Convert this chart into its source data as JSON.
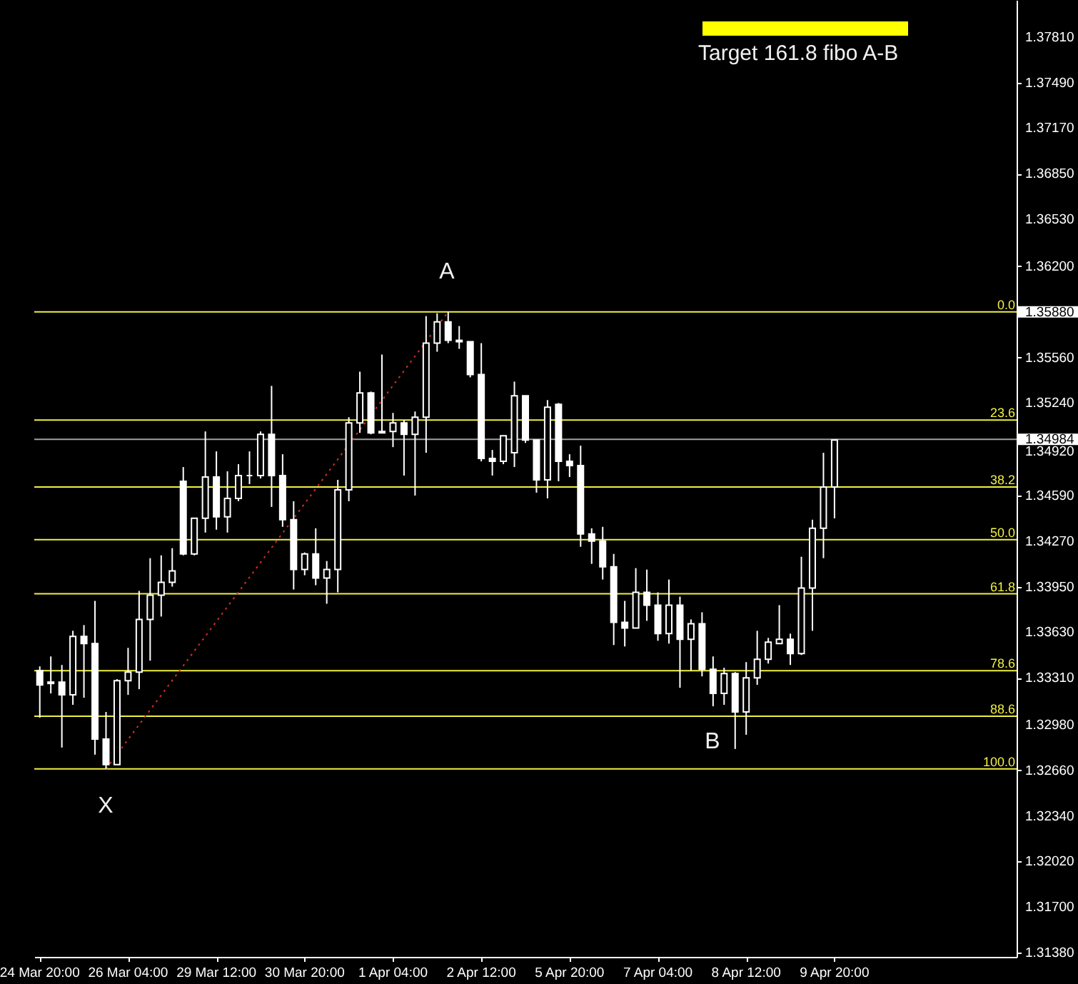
{
  "chart_data": {
    "type": "candlestick",
    "color": "#ffffff",
    "categories": [
      "24 Mar 20:00",
      null,
      null,
      null,
      null,
      null,
      null,
      null,
      "26 Mar 04:00",
      null,
      null,
      null,
      null,
      null,
      null,
      null,
      "29 Mar 12:00",
      null,
      null,
      null,
      null,
      null,
      null,
      null,
      "30 Mar 20:00",
      null,
      null,
      null,
      null,
      null,
      null,
      null,
      "1 Apr 04:00",
      null,
      null,
      null,
      null,
      null,
      null,
      null,
      "2 Apr 12:00",
      null,
      null,
      null,
      null,
      null,
      null,
      null,
      "5 Apr 20:00",
      null,
      null,
      null,
      null,
      null,
      null,
      null,
      "7 Apr 04:00",
      null,
      null,
      null,
      null,
      null,
      null,
      null,
      "8 Apr 12:00",
      null,
      null,
      null,
      null,
      null,
      null,
      null,
      "9 Apr 20:00",
      null,
      null,
      null,
      null,
      null,
      null,
      null,
      null,
      null,
      null,
      null,
      null,
      null,
      null,
      null,
      null
    ],
    "ohlc": [
      [
        1.3336,
        1.3339,
        1.3303,
        1.3326
      ],
      [
        1.3327,
        1.3346,
        1.332,
        1.3328
      ],
      [
        1.3328,
        1.334,
        1.3282,
        1.3319
      ],
      [
        1.3319,
        1.3364,
        1.3312,
        1.336
      ],
      [
        1.336,
        1.3368,
        1.3317,
        1.3355
      ],
      [
        1.3355,
        1.3385,
        1.3277,
        1.3288
      ],
      [
        1.3288,
        1.3307,
        1.3267,
        1.327
      ],
      [
        1.327,
        1.333,
        1.327,
        1.3329
      ],
      [
        1.3329,
        1.3352,
        1.3319,
        1.3335
      ],
      [
        1.3335,
        1.3392,
        1.3323,
        1.3372
      ],
      [
        1.3372,
        1.3415,
        1.3343,
        1.3389
      ],
      [
        1.3389,
        1.3417,
        1.3374,
        1.3398
      ],
      [
        1.3398,
        1.3422,
        1.3395,
        1.3406
      ],
      [
        1.3469,
        1.3479,
        1.3417,
        1.3418
      ],
      [
        1.3418,
        1.3443,
        1.3417,
        1.3443
      ],
      [
        1.3443,
        1.3504,
        1.3433,
        1.3472
      ],
      [
        1.3472,
        1.349,
        1.3435,
        1.3444
      ],
      [
        1.3444,
        1.3476,
        1.3433,
        1.3457
      ],
      [
        1.3457,
        1.3481,
        1.3455,
        1.3473
      ],
      [
        1.3473,
        1.349,
        1.3467,
        1.3473
      ],
      [
        1.3473,
        1.3504,
        1.3471,
        1.3502
      ],
      [
        1.3502,
        1.3536,
        1.3451,
        1.3473
      ],
      [
        1.3473,
        1.3488,
        1.3437,
        1.3442
      ],
      [
        1.3442,
        1.3455,
        1.3393,
        1.3407
      ],
      [
        1.3407,
        1.3419,
        1.3403,
        1.3418
      ],
      [
        1.3418,
        1.3436,
        1.3396,
        1.3401
      ],
      [
        1.3401,
        1.3413,
        1.3383,
        1.3407
      ],
      [
        1.3407,
        1.347,
        1.3391,
        1.3463
      ],
      [
        1.3463,
        1.3514,
        1.3455,
        1.351
      ],
      [
        1.351,
        1.3546,
        1.3503,
        1.3531
      ],
      [
        1.3531,
        1.3532,
        1.3502,
        1.3503
      ],
      [
        1.3503,
        1.3558,
        1.3503,
        1.3504
      ],
      [
        1.3504,
        1.3517,
        1.3493,
        1.351
      ],
      [
        1.351,
        1.3512,
        1.3473,
        1.3502
      ],
      [
        1.3502,
        1.3518,
        1.3459,
        1.3514
      ],
      [
        1.3514,
        1.3585,
        1.3489,
        1.3566
      ],
      [
        1.3566,
        1.3587,
        1.356,
        1.3581
      ],
      [
        1.3581,
        1.3588,
        1.3566,
        1.3568
      ],
      [
        1.3568,
        1.3578,
        1.3562,
        1.3567
      ],
      [
        1.3567,
        1.3567,
        1.3542,
        1.3544
      ],
      [
        1.3544,
        1.3566,
        1.3483,
        1.3485
      ],
      [
        1.3485,
        1.3491,
        1.3473,
        1.3483
      ],
      [
        1.3483,
        1.3501,
        1.3481,
        1.3501
      ],
      [
        1.3489,
        1.3539,
        1.3479,
        1.3529
      ],
      [
        1.3529,
        1.3529,
        1.3496,
        1.3498
      ],
      [
        1.3498,
        1.3498,
        1.3461,
        1.347
      ],
      [
        1.347,
        1.3526,
        1.3457,
        1.3521
      ],
      [
        1.3523,
        1.3524,
        1.3469,
        1.3483
      ],
      [
        1.3483,
        1.3488,
        1.3472,
        1.348
      ],
      [
        1.348,
        1.3494,
        1.3423,
        1.3432
      ],
      [
        1.3432,
        1.3436,
        1.3411,
        1.3427
      ],
      [
        1.3427,
        1.3437,
        1.34,
        1.3409
      ],
      [
        1.3409,
        1.3418,
        1.3354,
        1.337
      ],
      [
        1.337,
        1.3385,
        1.3353,
        1.3366
      ],
      [
        1.3366,
        1.3408,
        1.3366,
        1.3391
      ],
      [
        1.3391,
        1.3407,
        1.3371,
        1.3382
      ],
      [
        1.3382,
        1.3391,
        1.3357,
        1.3362
      ],
      [
        1.3362,
        1.34,
        1.3355,
        1.3382
      ],
      [
        1.3382,
        1.3388,
        1.3324,
        1.3358
      ],
      [
        1.3358,
        1.3372,
        1.3336,
        1.3369
      ],
      [
        1.3369,
        1.3377,
        1.3332,
        1.3337
      ],
      [
        1.3337,
        1.3346,
        1.3311,
        1.332
      ],
      [
        1.332,
        1.3338,
        1.3312,
        1.3334
      ],
      [
        1.3334,
        1.3335,
        1.3281,
        1.3307
      ],
      [
        1.3307,
        1.3342,
        1.3291,
        1.3331
      ],
      [
        1.3331,
        1.3364,
        1.3326,
        1.3344
      ],
      [
        1.3344,
        1.3359,
        1.3341,
        1.3356
      ],
      [
        1.3355,
        1.3382,
        1.3355,
        1.3358
      ],
      [
        1.3358,
        1.3362,
        1.334,
        1.3348
      ],
      [
        1.3348,
        1.3416,
        1.3347,
        1.3394
      ],
      [
        1.3394,
        1.3442,
        1.3364,
        1.3436
      ],
      [
        1.3436,
        1.3489,
        1.3415,
        1.3465
      ],
      [
        1.3465,
        1.3498,
        1.3443,
        1.3498
      ],
      null,
      null,
      null,
      null,
      null,
      null,
      null,
      null,
      null,
      null,
      null,
      null,
      null,
      null,
      null,
      null
    ],
    "series": [
      {
        "type": "line",
        "values": [
          null,
          null,
          null,
          null,
          null,
          null,
          1.3267,
          null,
          null,
          null,
          null,
          null,
          null,
          null,
          null,
          null,
          null,
          null,
          null,
          null,
          null,
          null,
          null,
          null,
          null,
          null,
          null,
          null,
          null,
          null,
          null,
          null,
          null,
          null,
          null,
          null,
          null,
          1.3588,
          null,
          null,
          null,
          null,
          null,
          null,
          null,
          null,
          null,
          null,
          null,
          null,
          null,
          null,
          null,
          null,
          null,
          null,
          null,
          null,
          null,
          null,
          null,
          null,
          null,
          null,
          null,
          null,
          null,
          null,
          null,
          null,
          null,
          null,
          null,
          null,
          null,
          null,
          null,
          null,
          null,
          null,
          null,
          null,
          null,
          null,
          null,
          null,
          null,
          null,
          null
        ],
        "color": "#d03020",
        "line_style": "dotted"
      }
    ],
    "ylim": [
      1.3135,
      1.3807
    ],
    "yticks": [
      {
        "value": 1.3781,
        "label": "1.37810"
      },
      {
        "value": 1.3749,
        "label": "1.37490"
      },
      {
        "value": 1.3717,
        "label": "1.37170"
      },
      {
        "value": 1.3685,
        "label": "1.36850"
      },
      {
        "value": 1.3653,
        "label": "1.36530"
      },
      {
        "value": 1.362,
        "label": "1.36200"
      },
      {
        "value": 1.3588,
        "label": "1.35880"
      },
      {
        "value": 1.3556,
        "label": "1.35560"
      },
      {
        "value": 1.3524,
        "label": "1.35240"
      },
      1.34984,
      {
        "value": 1.3492,
        "label": "1.34920"
      },
      {
        "value": 1.3459,
        "label": "1.34590"
      },
      {
        "value": 1.3427,
        "label": "1.34270"
      },
      {
        "value": 1.3395,
        "label": "1.33950"
      },
      {
        "value": 1.3363,
        "label": "1.33630"
      },
      {
        "value": 1.3331,
        "label": "1.33310"
      },
      {
        "value": 1.3298,
        "label": "1.32980"
      },
      {
        "value": 1.3266,
        "label": "1.32660"
      },
      {
        "value": 1.3234,
        "label": "1.32340"
      },
      {
        "value": 1.3202,
        "label": "1.32020"
      },
      {
        "value": 1.317,
        "label": "1.31700"
      },
      {
        "value": 1.3138,
        "label": "1.31380"
      }
    ],
    "ref_lines": [
      {
        "axis": "y",
        "value": 1.3588,
        "color": "#f0f040"
      },
      {
        "axis": "y",
        "value": 1.3512,
        "color": "#f0f040"
      },
      {
        "axis": "y",
        "value": 1.3465,
        "color": "#f0f040"
      },
      {
        "axis": "y",
        "value": 1.3428,
        "color": "#f0f040"
      },
      {
        "axis": "y",
        "value": 1.339,
        "color": "#f0f040"
      },
      {
        "axis": "y",
        "value": 1.3336,
        "color": "#f0f040"
      },
      {
        "axis": "y",
        "value": 1.3304,
        "color": "#f0f040"
      },
      {
        "axis": "y",
        "value": 1.3267,
        "color": "#f0f040"
      },
      {
        "axis": "y",
        "value": 1.34984,
        "color": "#a0a0a0"
      }
    ],
    "annotations": [
      "Target 161.8 fibo A-B",
      "A",
      "B",
      "X",
      {
        "text": "0.0",
        "y": 1.3588
      },
      {
        "text": "23.6",
        "y": 1.3512
      },
      {
        "text": "38.2",
        "y": 1.3465
      },
      {
        "text": "50.0",
        "y": 1.3428
      },
      {
        "text": "61.8",
        "y": 1.339
      },
      {
        "text": "78.6",
        "y": 1.3336
      },
      {
        "text": "88.6",
        "y": 1.3304
      },
      {
        "text": "100.0",
        "y": 1.3267
      }
    ]
  }
}
